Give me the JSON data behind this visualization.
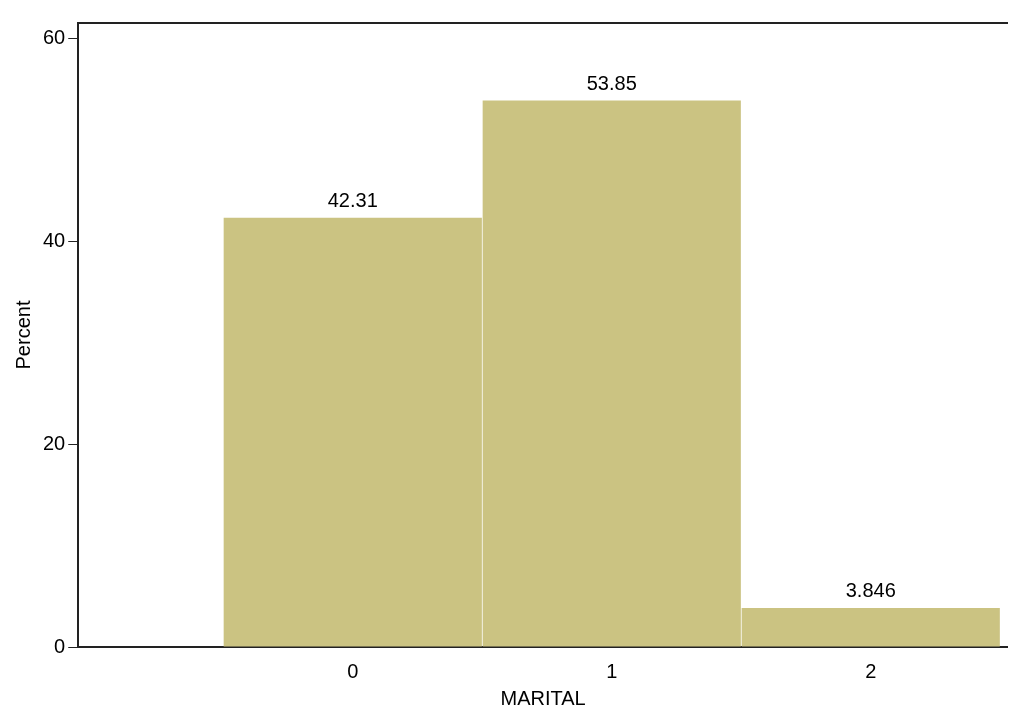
{
  "chart_data": {
    "type": "histogram",
    "xlabel": "MARITAL",
    "ylabel": "Percent",
    "bins": [
      -0.5,
      0.5,
      1.5,
      2.5
    ],
    "values": [
      42.31,
      53.85,
      3.846
    ],
    "color": "#cbc382",
    "xlim": [
      -1.06,
      2.53
    ],
    "xticks": [
      0,
      1,
      2
    ],
    "ylim": [
      0,
      61.5
    ],
    "yticks": [
      0,
      20,
      40,
      60
    ],
    "data_labels": true,
    "grid": false,
    "legend": false
  }
}
